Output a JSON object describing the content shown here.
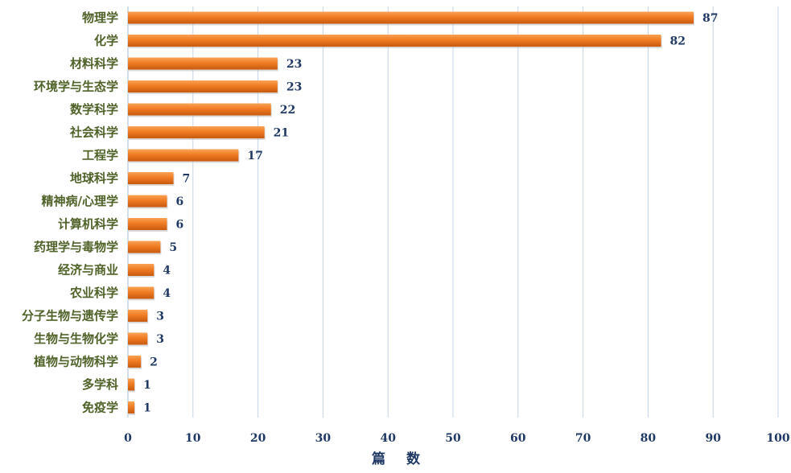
{
  "chart_data": {
    "type": "bar",
    "orientation": "horizontal",
    "categories": [
      "物理学",
      "化学",
      "材料科学",
      "环境学与生态学",
      "数学科学",
      "社会科学",
      "工程学",
      "地球科学",
      "精神病/心理学",
      "计算机科学",
      "药理学与毒物学",
      "经济与商业",
      "农业科学",
      "分子生物与遗传学",
      "生物与生物化学",
      "植物与动物科学",
      "多学科",
      "免疫学"
    ],
    "values": [
      87,
      82,
      23,
      23,
      22,
      21,
      17,
      7,
      6,
      6,
      5,
      4,
      4,
      3,
      3,
      2,
      1,
      1
    ],
    "value_labels": [
      "87",
      "82",
      "23",
      "23",
      "22",
      "21",
      "17",
      "7",
      "6",
      "6",
      "5",
      "4",
      "4",
      "3",
      "3",
      "2",
      "1",
      "1"
    ],
    "xlabel": "篇数",
    "xlim": [
      0,
      100
    ],
    "xticks": [
      0,
      10,
      20,
      30,
      40,
      50,
      60,
      70,
      80,
      90,
      100
    ],
    "xtick_labels": [
      "0",
      "10",
      "20",
      "30",
      "40",
      "50",
      "60",
      "70",
      "80",
      "90",
      "100"
    ],
    "grid": true,
    "legend": "none",
    "bar_color": "#f07b22",
    "grid_color": "#c5d5e8",
    "label_color": "#4f6228",
    "value_color": "#1f3864"
  }
}
